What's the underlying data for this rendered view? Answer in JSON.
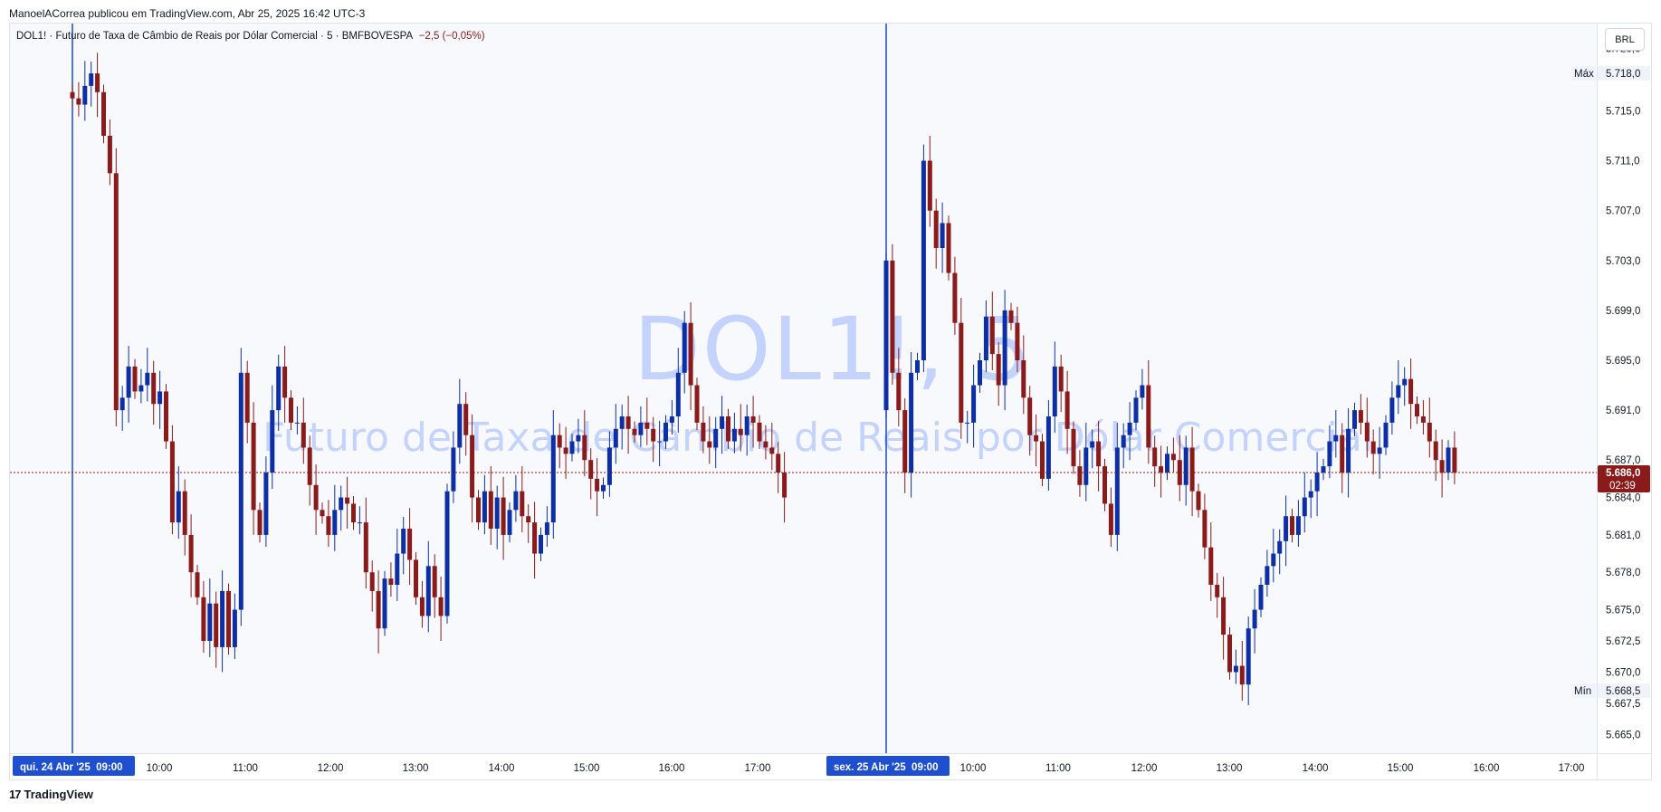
{
  "publication_line": "ManoelACorrea publicou em TradingView.com, Abr 25, 2025 16:42 UTC-3",
  "legend": {
    "symbol": "DOL1!",
    "description": "Futuro de Taxa de Câmbio de Reais por Dólar Comercial",
    "interval": "5",
    "exchange": "BMFBOVESPA",
    "change": "−2,5 (−0,05%)"
  },
  "currency_button": "BRL",
  "watermark": {
    "symbol": "DOL1!, 5",
    "description": "Futuro de Taxa de Câmbio de Reais por Dólar Comercial"
  },
  "footer_logo": "TradingView",
  "footer_logo_mark": "17",
  "colors": {
    "up": "#0d2fa6",
    "down": "#8b1a1a",
    "session_line": "#1848d8",
    "price_line": "#8b1a1a",
    "date_badge": "#1f4fd1"
  },
  "chart_data": {
    "type": "candlestick",
    "price_axis": {
      "ticks": [
        "5.720,0",
        "5.715,0",
        "5.711,0",
        "5.707,0",
        "5.703,0",
        "5.699,0",
        "5.695,0",
        "5.691,0",
        "5.687,0",
        "5.684,0",
        "5.681,0",
        "5.678,0",
        "5.675,0",
        "5.672,5",
        "5.670,0",
        "5.667,5",
        "5.665,0"
      ],
      "tick_values": [
        5720,
        5715,
        5711,
        5707,
        5703,
        5699,
        5695,
        5691,
        5687,
        5684,
        5681,
        5678,
        5675,
        5672.5,
        5670,
        5667.5,
        5665
      ],
      "range": [
        5663.5,
        5722
      ],
      "max_label": "Máx",
      "max_value": 5718.0,
      "max_text": "5.718,0",
      "min_label": "Mín",
      "min_value": 5668.5,
      "min_text": "5.668,5",
      "last_value": 5686.0,
      "last_text": "5.686,0",
      "countdown": "02:39"
    },
    "time_axis": {
      "date_badges": [
        "qui. 24 Abr '25  09:00",
        "sex. 25 Abr '25  09:00"
      ],
      "labels": [
        "10:00",
        "11:00",
        "12:00",
        "13:00",
        "14:00",
        "15:00",
        "16:00",
        "17:00",
        "10:00",
        "11:00",
        "12:00",
        "13:00",
        "14:00",
        "15:00",
        "16:00",
        "17:00"
      ]
    },
    "sessions": [
      {
        "date": "2025-04-24",
        "start": "08:55",
        "close": [
          5716.0,
          5715.5,
          5717.0,
          5718.0,
          5716.5,
          5713.0,
          5710.0,
          5691.0,
          5692.0,
          5694.5,
          5692.5,
          5693.0,
          5694.0,
          5691.5,
          5692.5,
          5688.5,
          5682.0,
          5684.5,
          5681.0,
          5678.0,
          5676.0,
          5672.5,
          5675.5,
          5672.0,
          5676.5,
          5672.0,
          5675.0,
          5694.0,
          5690.0,
          5683.0,
          5681.0,
          5686.0,
          5691.0,
          5694.5,
          5692.0,
          5690.0,
          5690.0,
          5688.0,
          5685.0,
          5683.0,
          5682.5,
          5681.0,
          5683.0,
          5684.0,
          5683.5,
          5682.0,
          5682.0,
          5678.0,
          5676.5,
          5673.5,
          5677.5,
          5677.0,
          5679.5,
          5681.5,
          5679.0,
          5676.0,
          5674.5,
          5678.5,
          5676.0,
          5674.5,
          5684.5,
          5688.0,
          5691.5,
          5689.0,
          5684.0,
          5682.0,
          5684.5,
          5681.5,
          5684.0,
          5681.0,
          5683.0,
          5684.5,
          5682.5,
          5682.0,
          5679.5,
          5681.0,
          5682.0,
          5689.0,
          5688.0,
          5687.5,
          5688.5,
          5689.0,
          5687.0,
          5685.5,
          5684.5,
          5685.0,
          5688.0,
          5689.5,
          5690.5,
          5689.5,
          5689.0,
          5690.0,
          5689.5,
          5688.5,
          5688.5,
          5690.0,
          5690.5,
          5694.0,
          5698.0,
          5693.0,
          5690.0,
          5688.5,
          5688.0,
          5689.5,
          5690.5,
          5688.5,
          5689.5,
          5689.0,
          5690.5,
          5690.0,
          5688.5,
          5688.0,
          5687.5,
          5686.0,
          5684.0
        ]
      },
      {
        "date": "2025-04-25",
        "start": "08:55",
        "close": [
          5703.0,
          5694.0,
          5691.0,
          5686.0,
          5694.0,
          5695.0,
          5711.0,
          5707.0,
          5704.0,
          5706.0,
          5702.0,
          5698.0,
          5690.0,
          5690.0,
          5693.0,
          5695.0,
          5698.5,
          5695.5,
          5693.0,
          5699.0,
          5698.0,
          5695.0,
          5692.0,
          5689.0,
          5688.5,
          5685.5,
          5690.5,
          5694.5,
          5692.5,
          5689.5,
          5686.5,
          5685.0,
          5688.0,
          5688.5,
          5686.5,
          5683.5,
          5681.0,
          5688.0,
          5689.0,
          5690.0,
          5692.0,
          5693.0,
          5688.0,
          5686.5,
          5686.0,
          5687.5,
          5687.0,
          5685.0,
          5688.0,
          5684.5,
          5683.0,
          5680.0,
          5677.0,
          5676.0,
          5673.0,
          5670.0,
          5670.5,
          5669.0,
          5673.5,
          5675.0,
          5677.0,
          5678.5,
          5679.5,
          5680.5,
          5682.5,
          5681.0,
          5682.5,
          5684.0,
          5684.5,
          5686.0,
          5686.5,
          5688.5,
          5689.0,
          5686.0,
          5689.5,
          5691.0,
          5690.0,
          5688.5,
          5687.5,
          5688.0,
          5690.0,
          5692.0,
          5693.0,
          5693.5,
          5691.5,
          5690.5,
          5690.0,
          5688.5,
          5687.0,
          5686.0,
          5688.0,
          5686.0
        ]
      }
    ]
  }
}
